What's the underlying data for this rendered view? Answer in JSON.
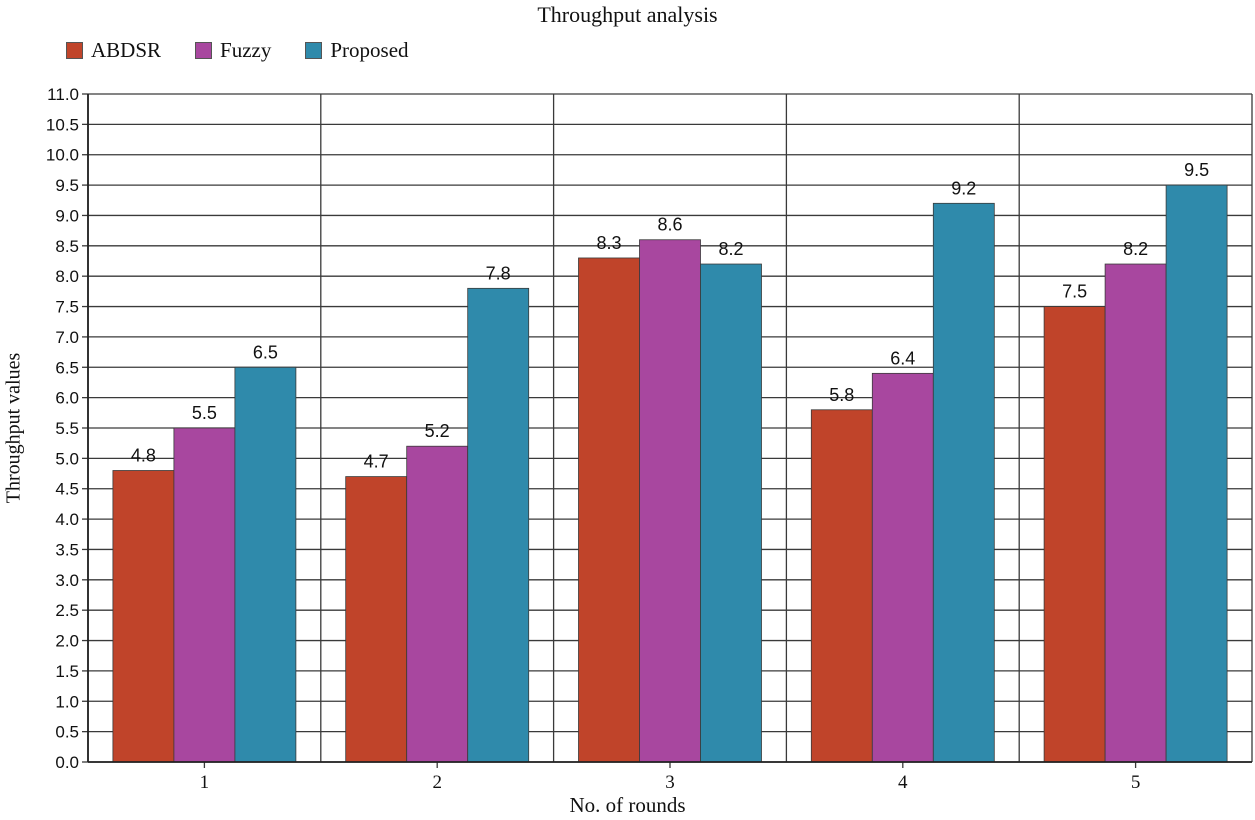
{
  "chart_data": {
    "type": "bar",
    "title": "Throughput analysis",
    "xlabel": "No. of rounds",
    "ylabel": "Throughput values",
    "categories": [
      "1",
      "2",
      "3",
      "4",
      "5"
    ],
    "series": [
      {
        "name": "ABDSR",
        "color": "#c0442a",
        "values": [
          4.8,
          4.7,
          8.3,
          5.8,
          7.5
        ]
      },
      {
        "name": "Fuzzy",
        "color": "#a8479f",
        "values": [
          5.5,
          5.2,
          8.6,
          6.4,
          8.2
        ]
      },
      {
        "name": "Proposed",
        "color": "#2f8aab",
        "values": [
          6.5,
          7.8,
          8.2,
          9.2,
          9.5
        ]
      }
    ],
    "ylim": [
      0,
      11
    ],
    "ytick_step": 0.5,
    "grid": true,
    "legend_position": "top-left"
  }
}
